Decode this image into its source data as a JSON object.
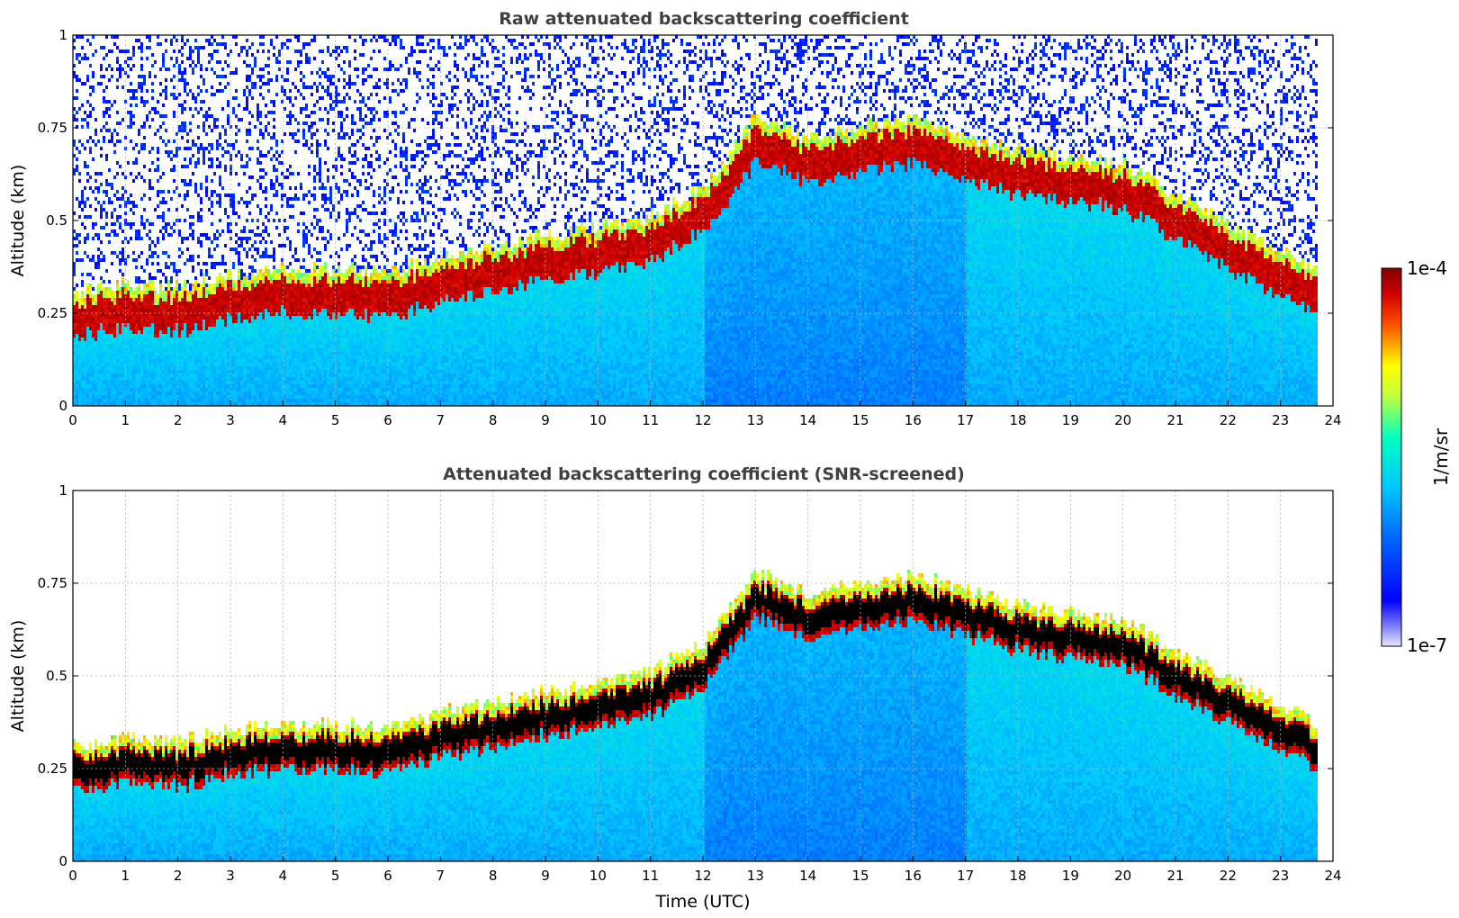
{
  "chart_data": [
    {
      "type": "heatmap",
      "title": "Raw attenuated backscattering coefficient",
      "xlabel": "",
      "ylabel": "Altitude (km)",
      "xlim": [
        0,
        24
      ],
      "ylim": [
        0,
        1
      ],
      "x_ticks": [
        "0",
        "1",
        "2",
        "3",
        "4",
        "5",
        "6",
        "7",
        "8",
        "9",
        "10",
        "11",
        "12",
        "13",
        "14",
        "15",
        "16",
        "17",
        "18",
        "19",
        "20",
        "21",
        "22",
        "23",
        "24"
      ],
      "y_ticks": [
        "0",
        "0.25",
        "0.5",
        "0.75",
        "1"
      ],
      "grid": true,
      "cloud_base_km": [
        [
          0,
          0.22
        ],
        [
          1,
          0.24
        ],
        [
          2,
          0.23
        ],
        [
          3,
          0.27
        ],
        [
          4,
          0.28
        ],
        [
          5,
          0.28
        ],
        [
          6,
          0.27
        ],
        [
          7,
          0.31
        ],
        [
          8,
          0.34
        ],
        [
          9,
          0.37
        ],
        [
          10,
          0.39
        ],
        [
          11,
          0.42
        ],
        [
          12,
          0.5
        ],
        [
          13,
          0.69
        ],
        [
          14,
          0.63
        ],
        [
          15,
          0.66
        ],
        [
          16,
          0.68
        ],
        [
          17,
          0.64
        ],
        [
          18,
          0.6
        ],
        [
          19,
          0.58
        ],
        [
          20,
          0.56
        ],
        [
          21,
          0.48
        ],
        [
          22,
          0.4
        ],
        [
          23,
          0.33
        ],
        [
          23.7,
          0.28
        ]
      ]
    },
    {
      "type": "heatmap",
      "title": "Attenuated backscattering coefficient (SNR-screened)",
      "xlabel": "Time (UTC)",
      "ylabel": "Altitude (km)",
      "xlim": [
        0,
        24
      ],
      "ylim": [
        0,
        1
      ],
      "x_ticks": [
        "0",
        "1",
        "2",
        "3",
        "4",
        "5",
        "6",
        "7",
        "8",
        "9",
        "10",
        "11",
        "12",
        "13",
        "14",
        "15",
        "16",
        "17",
        "18",
        "19",
        "20",
        "21",
        "22",
        "23",
        "24"
      ],
      "y_ticks": [
        "0",
        "0.25",
        "0.5",
        "0.75",
        "1"
      ],
      "grid": true,
      "cloud_base_km": [
        [
          0,
          0.22
        ],
        [
          1,
          0.24
        ],
        [
          2,
          0.23
        ],
        [
          3,
          0.27
        ],
        [
          4,
          0.28
        ],
        [
          5,
          0.28
        ],
        [
          6,
          0.27
        ],
        [
          7,
          0.31
        ],
        [
          8,
          0.34
        ],
        [
          9,
          0.37
        ],
        [
          10,
          0.39
        ],
        [
          11,
          0.42
        ],
        [
          12,
          0.5
        ],
        [
          13,
          0.69
        ],
        [
          14,
          0.63
        ],
        [
          15,
          0.66
        ],
        [
          16,
          0.68
        ],
        [
          17,
          0.64
        ],
        [
          18,
          0.6
        ],
        [
          19,
          0.58
        ],
        [
          20,
          0.56
        ],
        [
          21,
          0.48
        ],
        [
          22,
          0.4
        ],
        [
          23,
          0.33
        ],
        [
          23.7,
          0.28
        ]
      ]
    }
  ],
  "colorbar": {
    "max_label": "1e-4",
    "min_label": "1e-7",
    "units_label": "1/m/sr",
    "colormap": "jet",
    "colors": [
      "#e8e8ff",
      "#0000ff",
      "#00bfff",
      "#00ffbf",
      "#ffff00",
      "#ff4000",
      "#800000"
    ]
  }
}
